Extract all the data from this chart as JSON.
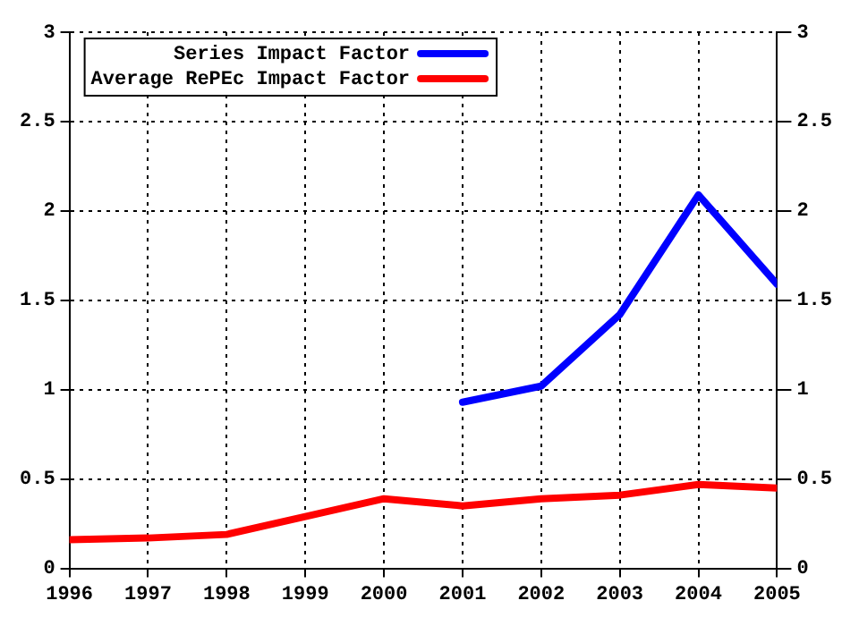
{
  "chart_data": {
    "type": "line",
    "x": [
      1996,
      1997,
      1998,
      1999,
      2000,
      2001,
      2002,
      2003,
      2004,
      2005
    ],
    "xlim": [
      1996,
      2005
    ],
    "xticks": [
      1996,
      1997,
      1998,
      1999,
      2000,
      2001,
      2002,
      2003,
      2004,
      2005
    ],
    "ylim": [
      0,
      3
    ],
    "yticks": [
      0,
      0.5,
      1,
      1.5,
      2,
      2.5,
      3
    ],
    "y2lim": [
      0,
      3
    ],
    "y2ticks": [
      0,
      0.5,
      1,
      1.5,
      2,
      2.5,
      3
    ],
    "series": [
      {
        "name": "Series Impact Factor",
        "color": "#0000ff",
        "values": [
          null,
          null,
          null,
          null,
          null,
          0.93,
          1.02,
          1.42,
          2.09,
          1.59
        ]
      },
      {
        "name": "Average RePEc Impact Factor",
        "color": "#ff0000",
        "values": [
          0.16,
          0.17,
          0.19,
          0.29,
          0.39,
          0.35,
          0.39,
          0.41,
          0.47,
          0.45
        ]
      }
    ],
    "grid": true,
    "legend": "top left",
    "marker": "none",
    "line_style": "solid"
  }
}
